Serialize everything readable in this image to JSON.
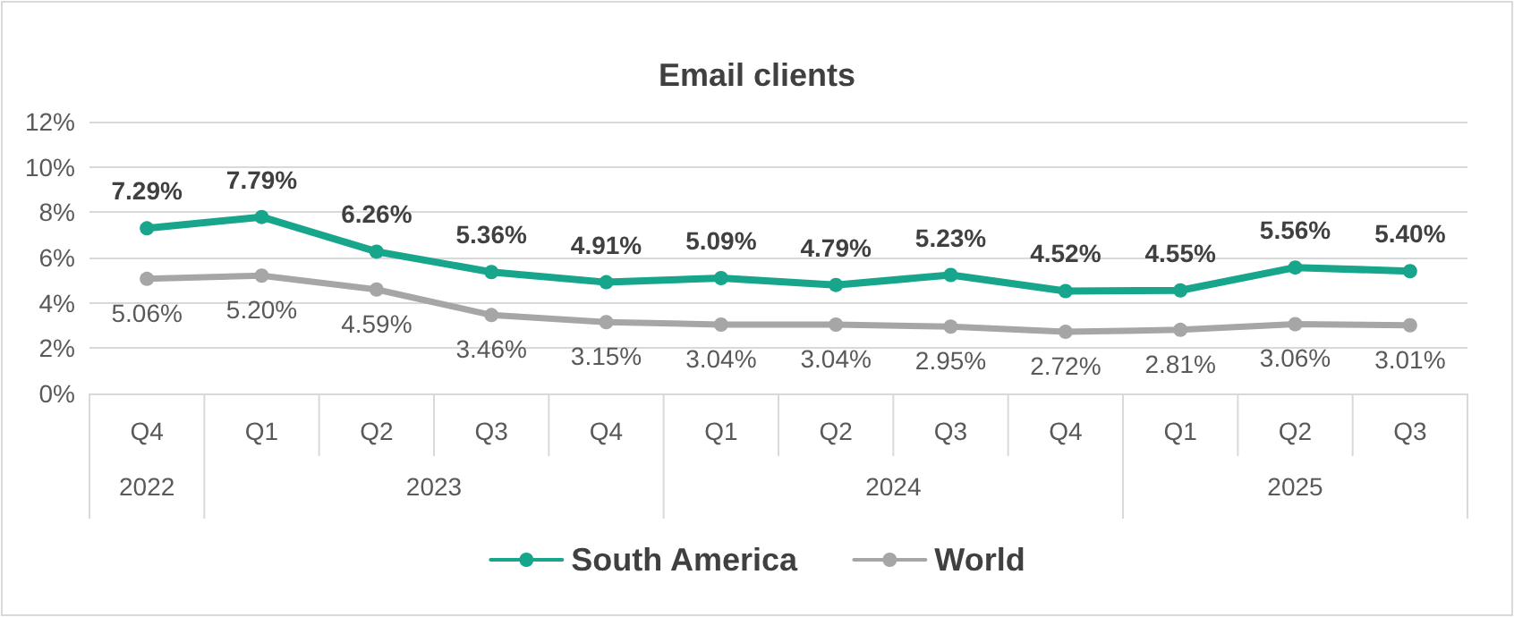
{
  "chart_data": {
    "type": "line",
    "title": "Email clients",
    "categories": [
      "Q4",
      "Q1",
      "Q2",
      "Q3",
      "Q4",
      "Q1",
      "Q2",
      "Q3",
      "Q4",
      "Q1",
      "Q2",
      "Q3"
    ],
    "annotations": [
      "2022",
      "2023",
      "2024",
      "2025"
    ],
    "series": [
      {
        "name": "South America",
        "color": "#17a68c",
        "values": [
          7.29,
          7.79,
          6.26,
          5.36,
          4.91,
          5.09,
          4.79,
          5.23,
          4.52,
          4.55,
          5.56,
          5.4
        ],
        "value_labels": [
          "7.29%",
          "7.79%",
          "6.26%",
          "5.36%",
          "4.91%",
          "5.09%",
          "4.79%",
          "5.23%",
          "4.52%",
          "4.55%",
          "5.56%",
          "5.40%"
        ]
      },
      {
        "name": "World",
        "color": "#a6a6a6",
        "values": [
          5.06,
          5.2,
          4.59,
          3.46,
          3.15,
          3.04,
          3.04,
          2.95,
          2.72,
          2.81,
          3.06,
          3.01
        ],
        "value_labels": [
          "5.06%",
          "5.20%",
          "4.59%",
          "3.46%",
          "3.15%",
          "3.04%",
          "3.04%",
          "2.95%",
          "2.72%",
          "2.81%",
          "3.06%",
          "3.01%"
        ]
      }
    ],
    "ylim": [
      0,
      12
    ],
    "yticks": [
      {
        "value": 0,
        "label": "0%"
      },
      {
        "value": 2,
        "label": "2%"
      },
      {
        "value": 4,
        "label": "4%"
      },
      {
        "value": 6,
        "label": "6%"
      },
      {
        "value": 8,
        "label": "8%"
      },
      {
        "value": 10,
        "label": "10%"
      },
      {
        "value": 12,
        "label": "12%"
      }
    ],
    "grid": "y",
    "legend": "bottom",
    "marker": "circle",
    "line_style": "solid"
  }
}
